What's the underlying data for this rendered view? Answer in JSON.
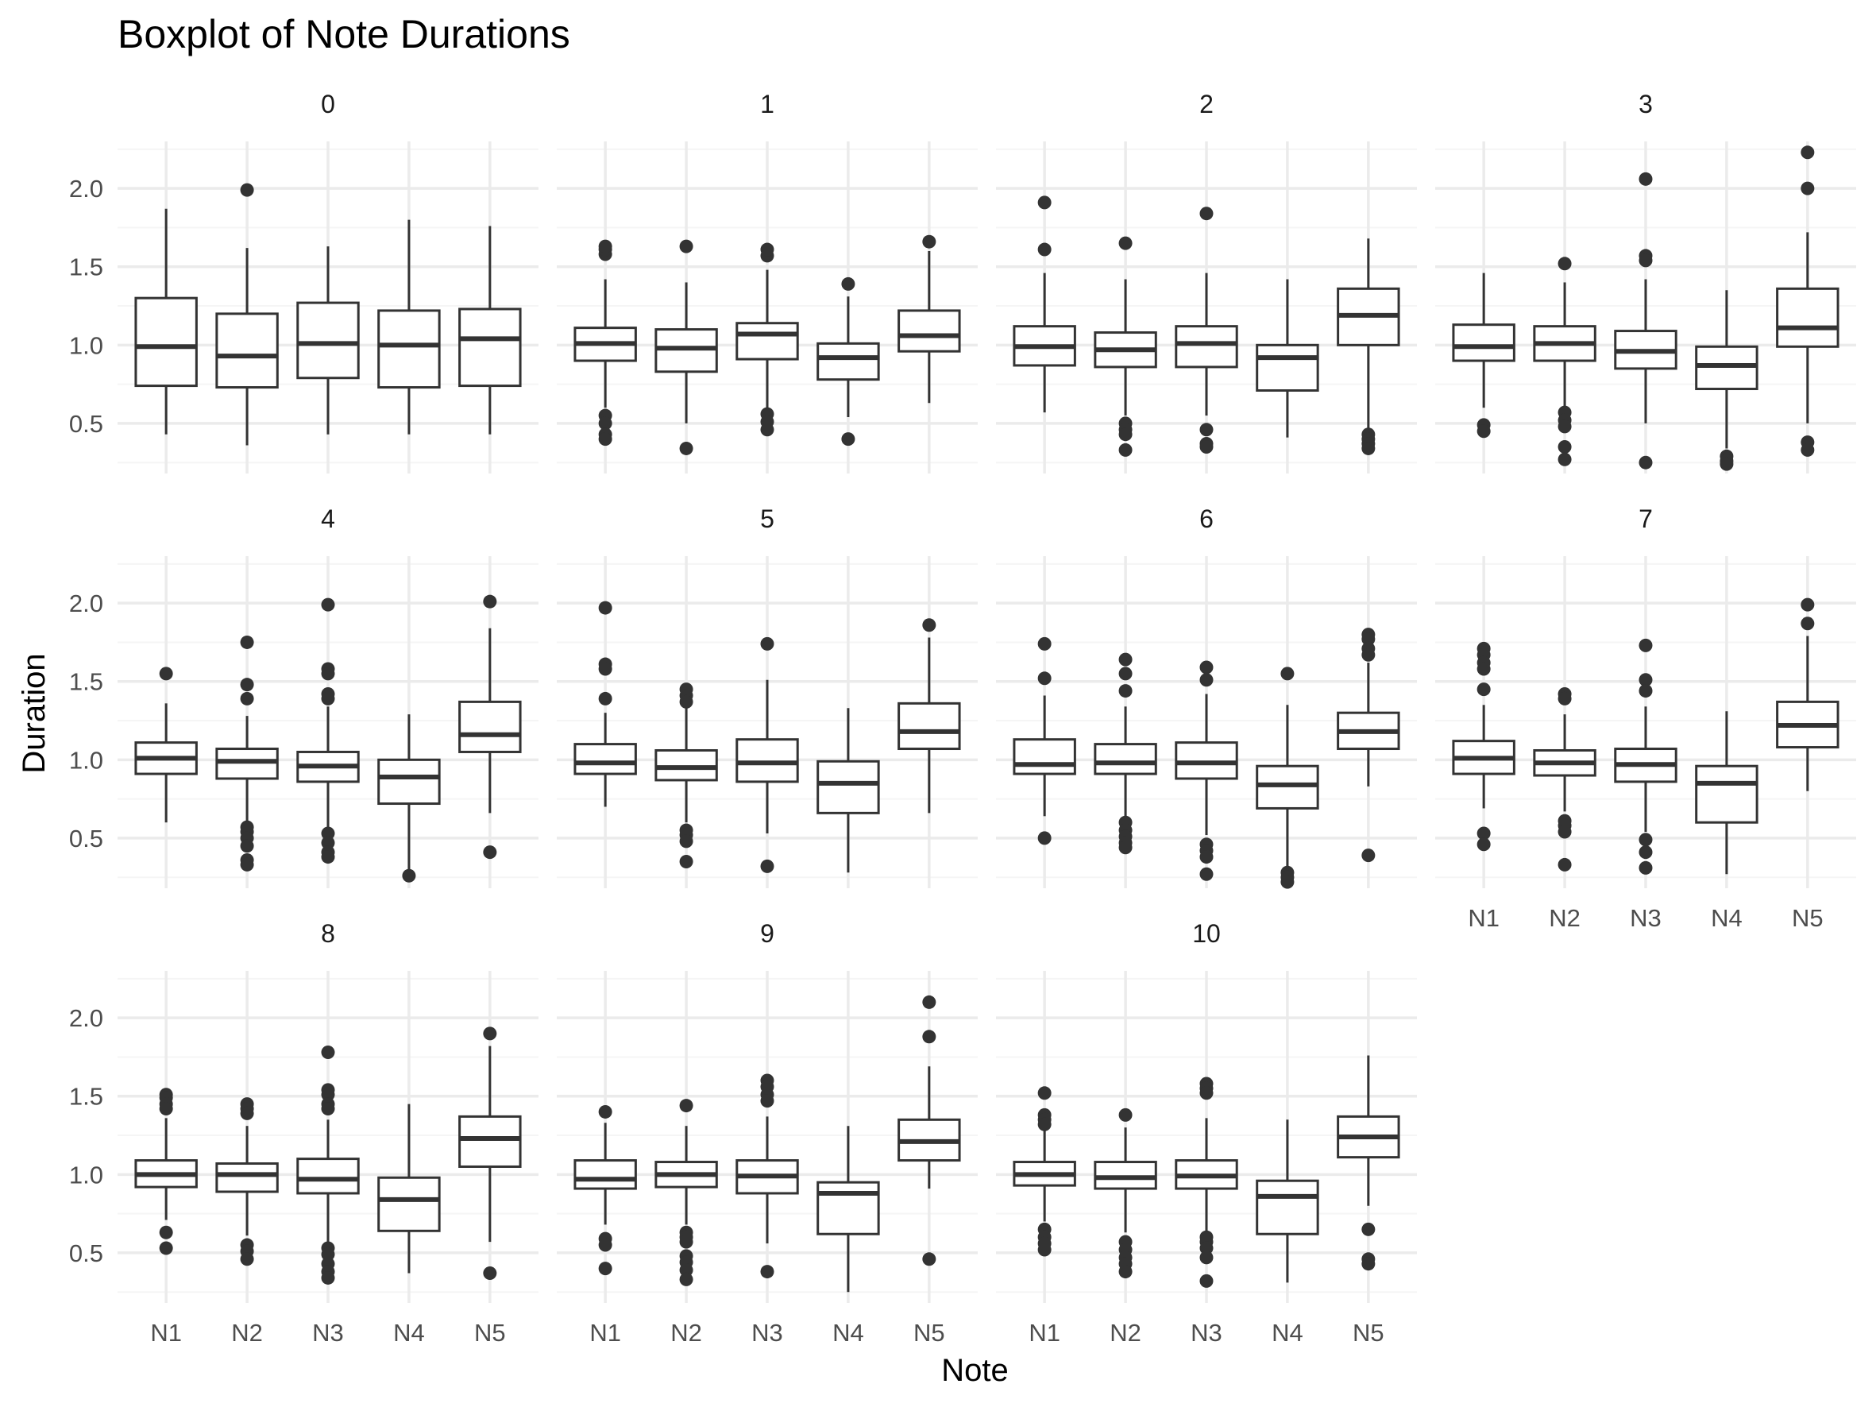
{
  "chart_data": {
    "type": "boxplot",
    "title": "Boxplot of Note Durations",
    "xlabel": "Note",
    "ylabel": "Duration",
    "facet_layout": "wrap, 4 columns",
    "categories": [
      "N1",
      "N2",
      "N3",
      "N4",
      "N5"
    ],
    "ylim": [
      0.18,
      2.3
    ],
    "yticks": [
      0.5,
      1.0,
      1.5,
      2.0
    ],
    "ytick_labels": [
      "0.5",
      "1.0",
      "1.5",
      "2.0"
    ],
    "grid": true,
    "colors": {
      "box_line": "#333333",
      "outlier": "#333333",
      "grid_major": "#ebebeb",
      "grid_minor": "#f5f5f5",
      "text": "#4d4d4d"
    },
    "panels": [
      {
        "label": "0",
        "boxes": [
          {
            "category": "N1",
            "min": 0.43,
            "q1": 0.74,
            "median": 0.99,
            "q3": 1.3,
            "max": 1.87,
            "outliers": []
          },
          {
            "category": "N2",
            "min": 0.36,
            "q1": 0.73,
            "median": 0.93,
            "q3": 1.2,
            "max": 1.62,
            "outliers": [
              1.99
            ]
          },
          {
            "category": "N3",
            "min": 0.43,
            "q1": 0.79,
            "median": 1.01,
            "q3": 1.27,
            "max": 1.63,
            "outliers": []
          },
          {
            "category": "N4",
            "min": 0.43,
            "q1": 0.73,
            "median": 1.0,
            "q3": 1.22,
            "max": 1.8,
            "outliers": []
          },
          {
            "category": "N5",
            "min": 0.43,
            "q1": 0.74,
            "median": 1.04,
            "q3": 1.23,
            "max": 1.76,
            "outliers": []
          }
        ]
      },
      {
        "label": "1",
        "boxes": [
          {
            "category": "N1",
            "min": 0.6,
            "q1": 0.9,
            "median": 1.01,
            "q3": 1.11,
            "max": 1.42,
            "outliers": [
              1.58,
              1.61,
              1.63,
              0.55,
              0.5,
              0.43,
              0.4
            ]
          },
          {
            "category": "N2",
            "min": 0.5,
            "q1": 0.83,
            "median": 0.98,
            "q3": 1.1,
            "max": 1.4,
            "outliers": [
              1.63,
              0.34
            ]
          },
          {
            "category": "N3",
            "min": 0.6,
            "q1": 0.91,
            "median": 1.07,
            "q3": 1.14,
            "max": 1.48,
            "outliers": [
              1.57,
              1.61,
              0.56,
              0.51,
              0.46
            ]
          },
          {
            "category": "N4",
            "min": 0.54,
            "q1": 0.78,
            "median": 0.92,
            "q3": 1.01,
            "max": 1.31,
            "outliers": [
              1.39,
              0.4
            ]
          },
          {
            "category": "N5",
            "min": 0.63,
            "q1": 0.96,
            "median": 1.06,
            "q3": 1.22,
            "max": 1.6,
            "outliers": [
              1.66
            ]
          }
        ]
      },
      {
        "label": "2",
        "boxes": [
          {
            "category": "N1",
            "min": 0.57,
            "q1": 0.87,
            "median": 0.99,
            "q3": 1.12,
            "max": 1.46,
            "outliers": [
              1.91,
              1.61
            ]
          },
          {
            "category": "N2",
            "min": 0.55,
            "q1": 0.86,
            "median": 0.97,
            "q3": 1.08,
            "max": 1.42,
            "outliers": [
              1.65,
              0.5,
              0.46,
              0.43,
              0.33
            ]
          },
          {
            "category": "N3",
            "min": 0.55,
            "q1": 0.86,
            "median": 1.01,
            "q3": 1.12,
            "max": 1.46,
            "outliers": [
              1.84,
              0.46,
              0.37,
              0.35
            ]
          },
          {
            "category": "N4",
            "min": 0.41,
            "q1": 0.71,
            "median": 0.92,
            "q3": 1.0,
            "max": 1.42,
            "outliers": []
          },
          {
            "category": "N5",
            "min": 0.45,
            "q1": 1.0,
            "median": 1.19,
            "q3": 1.36,
            "max": 1.68,
            "outliers": [
              0.43,
              0.4,
              0.37,
              0.34
            ]
          }
        ]
      },
      {
        "label": "3",
        "boxes": [
          {
            "category": "N1",
            "min": 0.6,
            "q1": 0.9,
            "median": 0.99,
            "q3": 1.13,
            "max": 1.46,
            "outliers": [
              0.49,
              0.45
            ]
          },
          {
            "category": "N2",
            "min": 0.6,
            "q1": 0.9,
            "median": 1.01,
            "q3": 1.12,
            "max": 1.4,
            "outliers": [
              1.52,
              0.57,
              0.52,
              0.48,
              0.35,
              0.27
            ]
          },
          {
            "category": "N3",
            "min": 0.5,
            "q1": 0.85,
            "median": 0.96,
            "q3": 1.09,
            "max": 1.42,
            "outliers": [
              2.06,
              1.57,
              1.54,
              0.25
            ]
          },
          {
            "category": "N4",
            "min": 0.34,
            "q1": 0.72,
            "median": 0.87,
            "q3": 0.99,
            "max": 1.35,
            "outliers": [
              0.29,
              0.26,
              0.24
            ]
          },
          {
            "category": "N5",
            "min": 0.5,
            "q1": 0.99,
            "median": 1.11,
            "q3": 1.36,
            "max": 1.72,
            "outliers": [
              2.23,
              2.0,
              0.38,
              0.33
            ]
          }
        ]
      },
      {
        "label": "4",
        "boxes": [
          {
            "category": "N1",
            "min": 0.6,
            "q1": 0.91,
            "median": 1.01,
            "q3": 1.11,
            "max": 1.36,
            "outliers": [
              1.55
            ]
          },
          {
            "category": "N2",
            "min": 0.6,
            "q1": 0.88,
            "median": 0.99,
            "q3": 1.07,
            "max": 1.28,
            "outliers": [
              1.75,
              1.48,
              1.39,
              0.57,
              0.54,
              0.5,
              0.45,
              0.36,
              0.33
            ]
          },
          {
            "category": "N3",
            "min": 0.55,
            "q1": 0.86,
            "median": 0.96,
            "q3": 1.05,
            "max": 1.34,
            "outliers": [
              1.99,
              1.58,
              1.55,
              1.42,
              1.39,
              0.53,
              0.47,
              0.41,
              0.38
            ]
          },
          {
            "category": "N4",
            "min": 0.3,
            "q1": 0.72,
            "median": 0.89,
            "q3": 1.0,
            "max": 1.29,
            "outliers": [
              0.26
            ]
          },
          {
            "category": "N5",
            "min": 0.66,
            "q1": 1.05,
            "median": 1.16,
            "q3": 1.37,
            "max": 1.84,
            "outliers": [
              2.01,
              0.41
            ]
          }
        ]
      },
      {
        "label": "5",
        "boxes": [
          {
            "category": "N1",
            "min": 0.7,
            "q1": 0.91,
            "median": 0.98,
            "q3": 1.1,
            "max": 1.3,
            "outliers": [
              1.97,
              1.61,
              1.58,
              1.39
            ]
          },
          {
            "category": "N2",
            "min": 0.6,
            "q1": 0.87,
            "median": 0.95,
            "q3": 1.06,
            "max": 1.35,
            "outliers": [
              1.45,
              1.41,
              1.37,
              0.55,
              0.52,
              0.48,
              0.35
            ]
          },
          {
            "category": "N3",
            "min": 0.53,
            "q1": 0.86,
            "median": 0.98,
            "q3": 1.13,
            "max": 1.51,
            "outliers": [
              1.74,
              0.32
            ]
          },
          {
            "category": "N4",
            "min": 0.28,
            "q1": 0.66,
            "median": 0.85,
            "q3": 0.99,
            "max": 1.33,
            "outliers": []
          },
          {
            "category": "N5",
            "min": 0.66,
            "q1": 1.07,
            "median": 1.18,
            "q3": 1.36,
            "max": 1.78,
            "outliers": [
              1.86
            ]
          }
        ]
      },
      {
        "label": "6",
        "boxes": [
          {
            "category": "N1",
            "min": 0.64,
            "q1": 0.91,
            "median": 0.97,
            "q3": 1.13,
            "max": 1.41,
            "outliers": [
              1.74,
              1.52,
              0.5
            ]
          },
          {
            "category": "N2",
            "min": 0.61,
            "q1": 0.91,
            "median": 0.98,
            "q3": 1.1,
            "max": 1.34,
            "outliers": [
              1.64,
              1.55,
              1.44,
              0.6,
              0.55,
              0.51,
              0.47,
              0.44
            ]
          },
          {
            "category": "N3",
            "min": 0.52,
            "q1": 0.88,
            "median": 0.98,
            "q3": 1.11,
            "max": 1.42,
            "outliers": [
              1.59,
              1.51,
              0.46,
              0.42,
              0.38,
              0.27
            ]
          },
          {
            "category": "N4",
            "min": 0.31,
            "q1": 0.69,
            "median": 0.84,
            "q3": 0.96,
            "max": 1.35,
            "outliers": [
              1.55,
              0.28,
              0.25,
              0.22
            ]
          },
          {
            "category": "N5",
            "min": 0.83,
            "q1": 1.07,
            "median": 1.18,
            "q3": 1.3,
            "max": 1.62,
            "outliers": [
              1.8,
              1.77,
              1.71,
              1.67,
              0.39
            ]
          }
        ]
      },
      {
        "label": "7",
        "boxes": [
          {
            "category": "N1",
            "min": 0.69,
            "q1": 0.91,
            "median": 1.01,
            "q3": 1.12,
            "max": 1.35,
            "outliers": [
              1.71,
              1.67,
              1.62,
              1.58,
              1.45,
              0.53,
              0.46
            ]
          },
          {
            "category": "N2",
            "min": 0.67,
            "q1": 0.9,
            "median": 0.98,
            "q3": 1.06,
            "max": 1.29,
            "outliers": [
              1.42,
              1.39,
              0.61,
              0.58,
              0.54,
              0.33
            ]
          },
          {
            "category": "N3",
            "min": 0.54,
            "q1": 0.86,
            "median": 0.97,
            "q3": 1.07,
            "max": 1.34,
            "outliers": [
              1.73,
              1.51,
              1.44,
              0.49,
              0.41,
              0.31
            ]
          },
          {
            "category": "N4",
            "min": 0.27,
            "q1": 0.6,
            "median": 0.85,
            "q3": 0.96,
            "max": 1.31,
            "outliers": []
          },
          {
            "category": "N5",
            "min": 0.8,
            "q1": 1.08,
            "median": 1.22,
            "q3": 1.37,
            "max": 1.79,
            "outliers": [
              1.99,
              1.87
            ]
          }
        ]
      },
      {
        "label": "8",
        "boxes": [
          {
            "category": "N1",
            "min": 0.71,
            "q1": 0.92,
            "median": 1.0,
            "q3": 1.09,
            "max": 1.36,
            "outliers": [
              1.51,
              1.49,
              1.45,
              1.42,
              0.63,
              0.53
            ]
          },
          {
            "category": "N2",
            "min": 0.61,
            "q1": 0.89,
            "median": 1.0,
            "q3": 1.07,
            "max": 1.31,
            "outliers": [
              1.45,
              1.42,
              1.39,
              0.55,
              0.51,
              0.46
            ]
          },
          {
            "category": "N3",
            "min": 0.56,
            "q1": 0.88,
            "median": 0.97,
            "q3": 1.1,
            "max": 1.35,
            "outliers": [
              1.78,
              1.54,
              1.51,
              1.45,
              1.42,
              0.53,
              0.49,
              0.43,
              0.38,
              0.34
            ]
          },
          {
            "category": "N4",
            "min": 0.37,
            "q1": 0.64,
            "median": 0.84,
            "q3": 0.98,
            "max": 1.45,
            "outliers": []
          },
          {
            "category": "N5",
            "min": 0.57,
            "q1": 1.05,
            "median": 1.23,
            "q3": 1.37,
            "max": 1.82,
            "outliers": [
              1.9,
              0.37
            ]
          }
        ]
      },
      {
        "label": "9",
        "boxes": [
          {
            "category": "N1",
            "min": 0.68,
            "q1": 0.91,
            "median": 0.97,
            "q3": 1.09,
            "max": 1.33,
            "outliers": [
              1.4,
              0.59,
              0.55,
              0.4
            ]
          },
          {
            "category": "N2",
            "min": 0.68,
            "q1": 0.92,
            "median": 1.0,
            "q3": 1.08,
            "max": 1.31,
            "outliers": [
              1.44,
              0.63,
              0.6,
              0.57,
              0.48,
              0.44,
              0.39,
              0.33
            ]
          },
          {
            "category": "N3",
            "min": 0.56,
            "q1": 0.88,
            "median": 0.99,
            "q3": 1.09,
            "max": 1.37,
            "outliers": [
              1.6,
              1.56,
              1.51,
              1.47,
              0.38
            ]
          },
          {
            "category": "N4",
            "min": 0.25,
            "q1": 0.62,
            "median": 0.88,
            "q3": 0.95,
            "max": 1.31,
            "outliers": []
          },
          {
            "category": "N5",
            "min": 0.91,
            "q1": 1.09,
            "median": 1.21,
            "q3": 1.35,
            "max": 1.69,
            "outliers": [
              2.1,
              1.88,
              0.46
            ]
          }
        ]
      },
      {
        "label": "10",
        "boxes": [
          {
            "category": "N1",
            "min": 0.7,
            "q1": 0.93,
            "median": 1.0,
            "q3": 1.08,
            "max": 1.3,
            "outliers": [
              1.52,
              1.38,
              1.35,
              1.32,
              0.65,
              0.6,
              0.56,
              0.52
            ]
          },
          {
            "category": "N2",
            "min": 0.63,
            "q1": 0.91,
            "median": 0.98,
            "q3": 1.08,
            "max": 1.3,
            "outliers": [
              1.38,
              0.57,
              0.52,
              0.47,
              0.43,
              0.38
            ]
          },
          {
            "category": "N3",
            "min": 0.64,
            "q1": 0.91,
            "median": 0.99,
            "q3": 1.09,
            "max": 1.36,
            "outliers": [
              1.58,
              1.55,
              1.52,
              0.6,
              0.57,
              0.53,
              0.47,
              0.32
            ]
          },
          {
            "category": "N4",
            "min": 0.31,
            "q1": 0.62,
            "median": 0.86,
            "q3": 0.96,
            "max": 1.35,
            "outliers": []
          },
          {
            "category": "N5",
            "min": 0.8,
            "q1": 1.11,
            "median": 1.24,
            "q3": 1.37,
            "max": 1.76,
            "outliers": [
              0.65,
              0.46,
              0.43
            ]
          }
        ]
      }
    ]
  }
}
